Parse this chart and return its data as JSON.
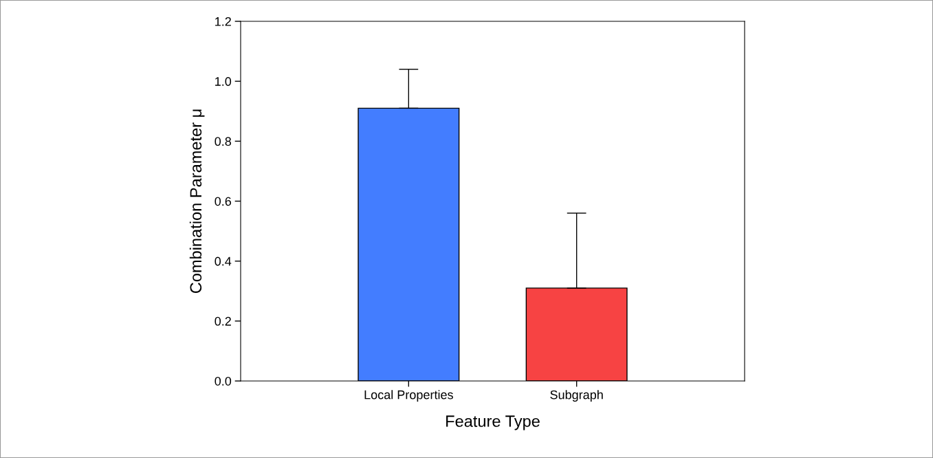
{
  "chart_data": {
    "type": "bar",
    "xlabel": "Feature Type",
    "ylabel": "Combination Parameter μ",
    "categories": [
      "Local Properties",
      "Subgraph"
    ],
    "values": [
      0.91,
      0.31
    ],
    "colors": [
      "#437dff",
      "#f74343"
    ],
    "errors": [
      [
        0.91,
        1.04
      ],
      [
        0.31,
        0.56
      ]
    ],
    "ylim": [
      0,
      1.2
    ],
    "yticks": [
      {
        "value": 0,
        "label": "0.0"
      },
      {
        "value": 0.2,
        "label": "0.2"
      },
      {
        "value": 0.4,
        "label": "0.4"
      },
      {
        "value": 0.6,
        "label": "0.6"
      },
      {
        "value": 0.8,
        "label": "0.8"
      },
      {
        "value": 1.0,
        "label": "1.0"
      },
      {
        "value": 1.2,
        "label": "1.2"
      }
    ],
    "grid": false,
    "legend": false
  }
}
